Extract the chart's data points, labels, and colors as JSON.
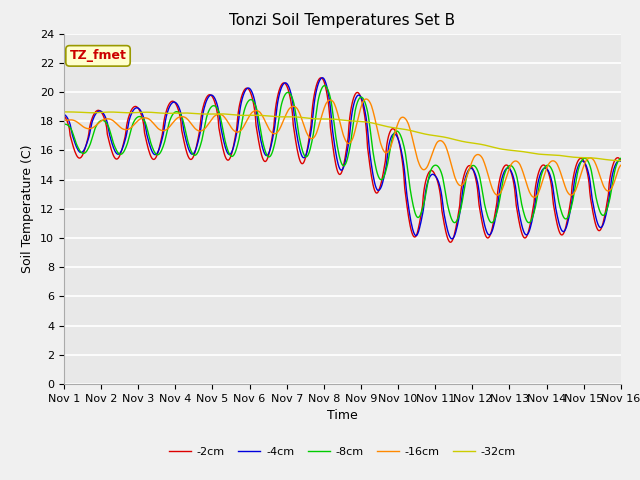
{
  "title": "Tonzi Soil Temperatures Set B",
  "xlabel": "Time",
  "ylabel": "Soil Temperature (C)",
  "annotation": "TZ_fmet",
  "ylim": [
    0,
    24
  ],
  "yticks": [
    0,
    2,
    4,
    6,
    8,
    10,
    12,
    14,
    16,
    18,
    20,
    22,
    24
  ],
  "colors": {
    "-2cm": "#dd0000",
    "-4cm": "#0000dd",
    "-8cm": "#00cc00",
    "-16cm": "#ff8800",
    "-32cm": "#cccc00"
  },
  "fig_bg": "#f0f0f0",
  "ax_bg": "#e8e8e8",
  "grid_color": "#ffffff",
  "n_days": 15,
  "title_fontsize": 11,
  "axis_label_fontsize": 9,
  "tick_fontsize": 8,
  "annot_fontsize": 9,
  "legend_fontsize": 8
}
